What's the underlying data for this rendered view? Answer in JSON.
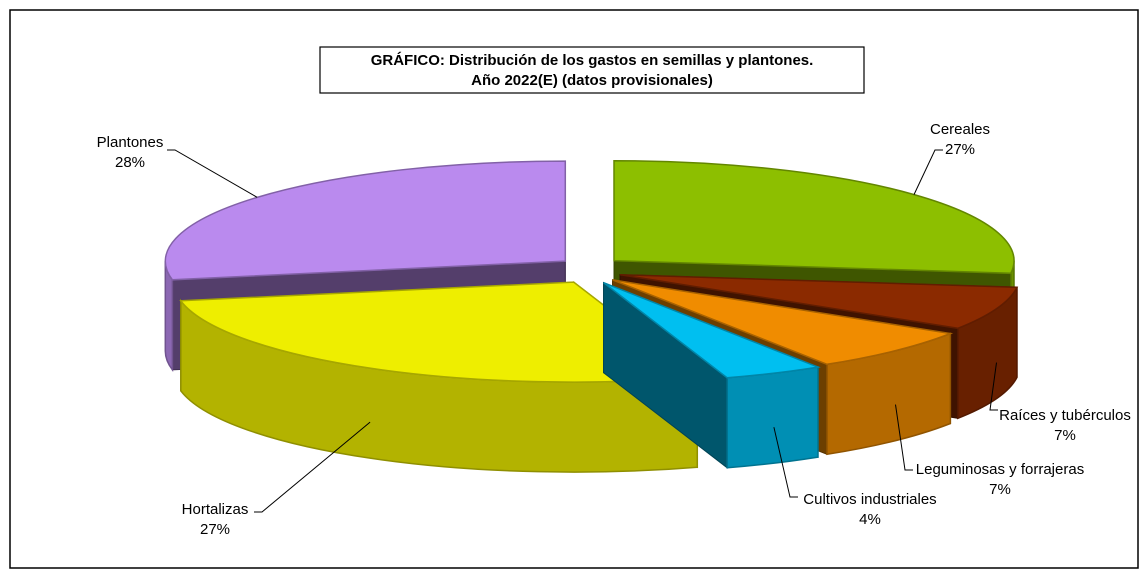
{
  "chart_data": {
    "type": "pie3d",
    "title": "GRÁFICO: Distribución  de los gastos en semillas  y plantones.",
    "subtitle": "Año  2022(E)  (datos  provisionales)",
    "categories": [
      "Cereales",
      "Raíces y tubérculos",
      "Leguminosas  y forrajeras",
      "Cultivos industriales",
      "Hortalizas",
      "Plantones"
    ],
    "values": [
      27,
      7,
      7,
      4,
      27,
      28
    ],
    "value_labels": [
      "27%",
      "7%",
      "7%",
      "4%",
      "27%",
      "28%"
    ],
    "colors": [
      "#8dbf00",
      "#8b2a00",
      "#f08c00",
      "#00bff0",
      "#eeee00",
      "#ba8aee"
    ]
  }
}
